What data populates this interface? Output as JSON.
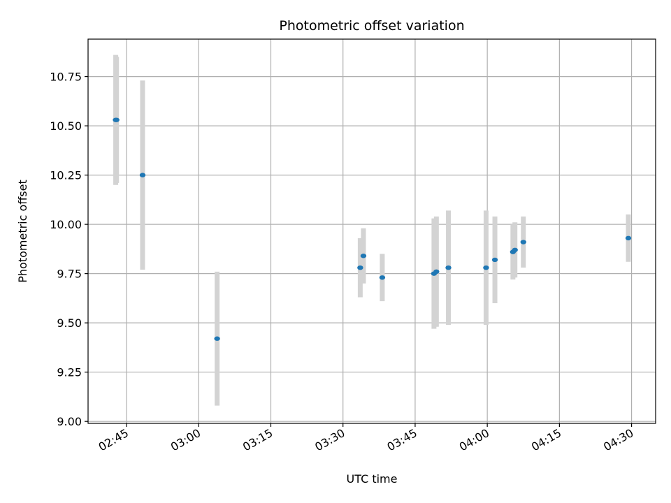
{
  "chart_data": {
    "type": "scatter",
    "title": "Photometric offset variation",
    "xlabel": "UTC time",
    "ylabel": "Photometric offset",
    "xlim": [
      "02:37",
      "04:35"
    ],
    "ylim": [
      8.99,
      10.94
    ],
    "x_ticks": [
      "02:45",
      "03:00",
      "03:15",
      "03:30",
      "03:45",
      "04:00",
      "04:15",
      "04:30"
    ],
    "y_ticks": [
      9.0,
      9.25,
      9.5,
      9.75,
      10.0,
      10.25,
      10.5,
      10.75
    ],
    "y_tick_labels": [
      "9.00",
      "9.25",
      "9.50",
      "9.75",
      "10.00",
      "10.25",
      "10.50",
      "10.75"
    ],
    "grid": true,
    "marker_color": "#1f77b4",
    "errorbar_color": "#d3d3d3",
    "points": [
      {
        "time": "02:42:45",
        "y": 10.53,
        "err": 0.33
      },
      {
        "time": "02:42:55",
        "y": 10.53,
        "err": 0.32
      },
      {
        "time": "02:48:20",
        "y": 10.25,
        "err": 0.48
      },
      {
        "time": "03:03:50",
        "y": 9.42,
        "err": 0.34
      },
      {
        "time": "03:33:35",
        "y": 9.78,
        "err": 0.15
      },
      {
        "time": "03:34:15",
        "y": 9.84,
        "err": 0.14
      },
      {
        "time": "03:38:10",
        "y": 9.73,
        "err": 0.12
      },
      {
        "time": "03:48:55",
        "y": 9.75,
        "err": 0.28
      },
      {
        "time": "03:49:25",
        "y": 9.76,
        "err": 0.28
      },
      {
        "time": "03:51:55",
        "y": 9.78,
        "err": 0.29
      },
      {
        "time": "03:59:45",
        "y": 9.78,
        "err": 0.29
      },
      {
        "time": "04:01:35",
        "y": 9.82,
        "err": 0.22
      },
      {
        "time": "04:05:20",
        "y": 9.86,
        "err": 0.14
      },
      {
        "time": "04:05:45",
        "y": 9.87,
        "err": 0.14
      },
      {
        "time": "04:07:30",
        "y": 9.91,
        "err": 0.13
      },
      {
        "time": "04:29:20",
        "y": 9.93,
        "err": 0.12
      }
    ]
  }
}
